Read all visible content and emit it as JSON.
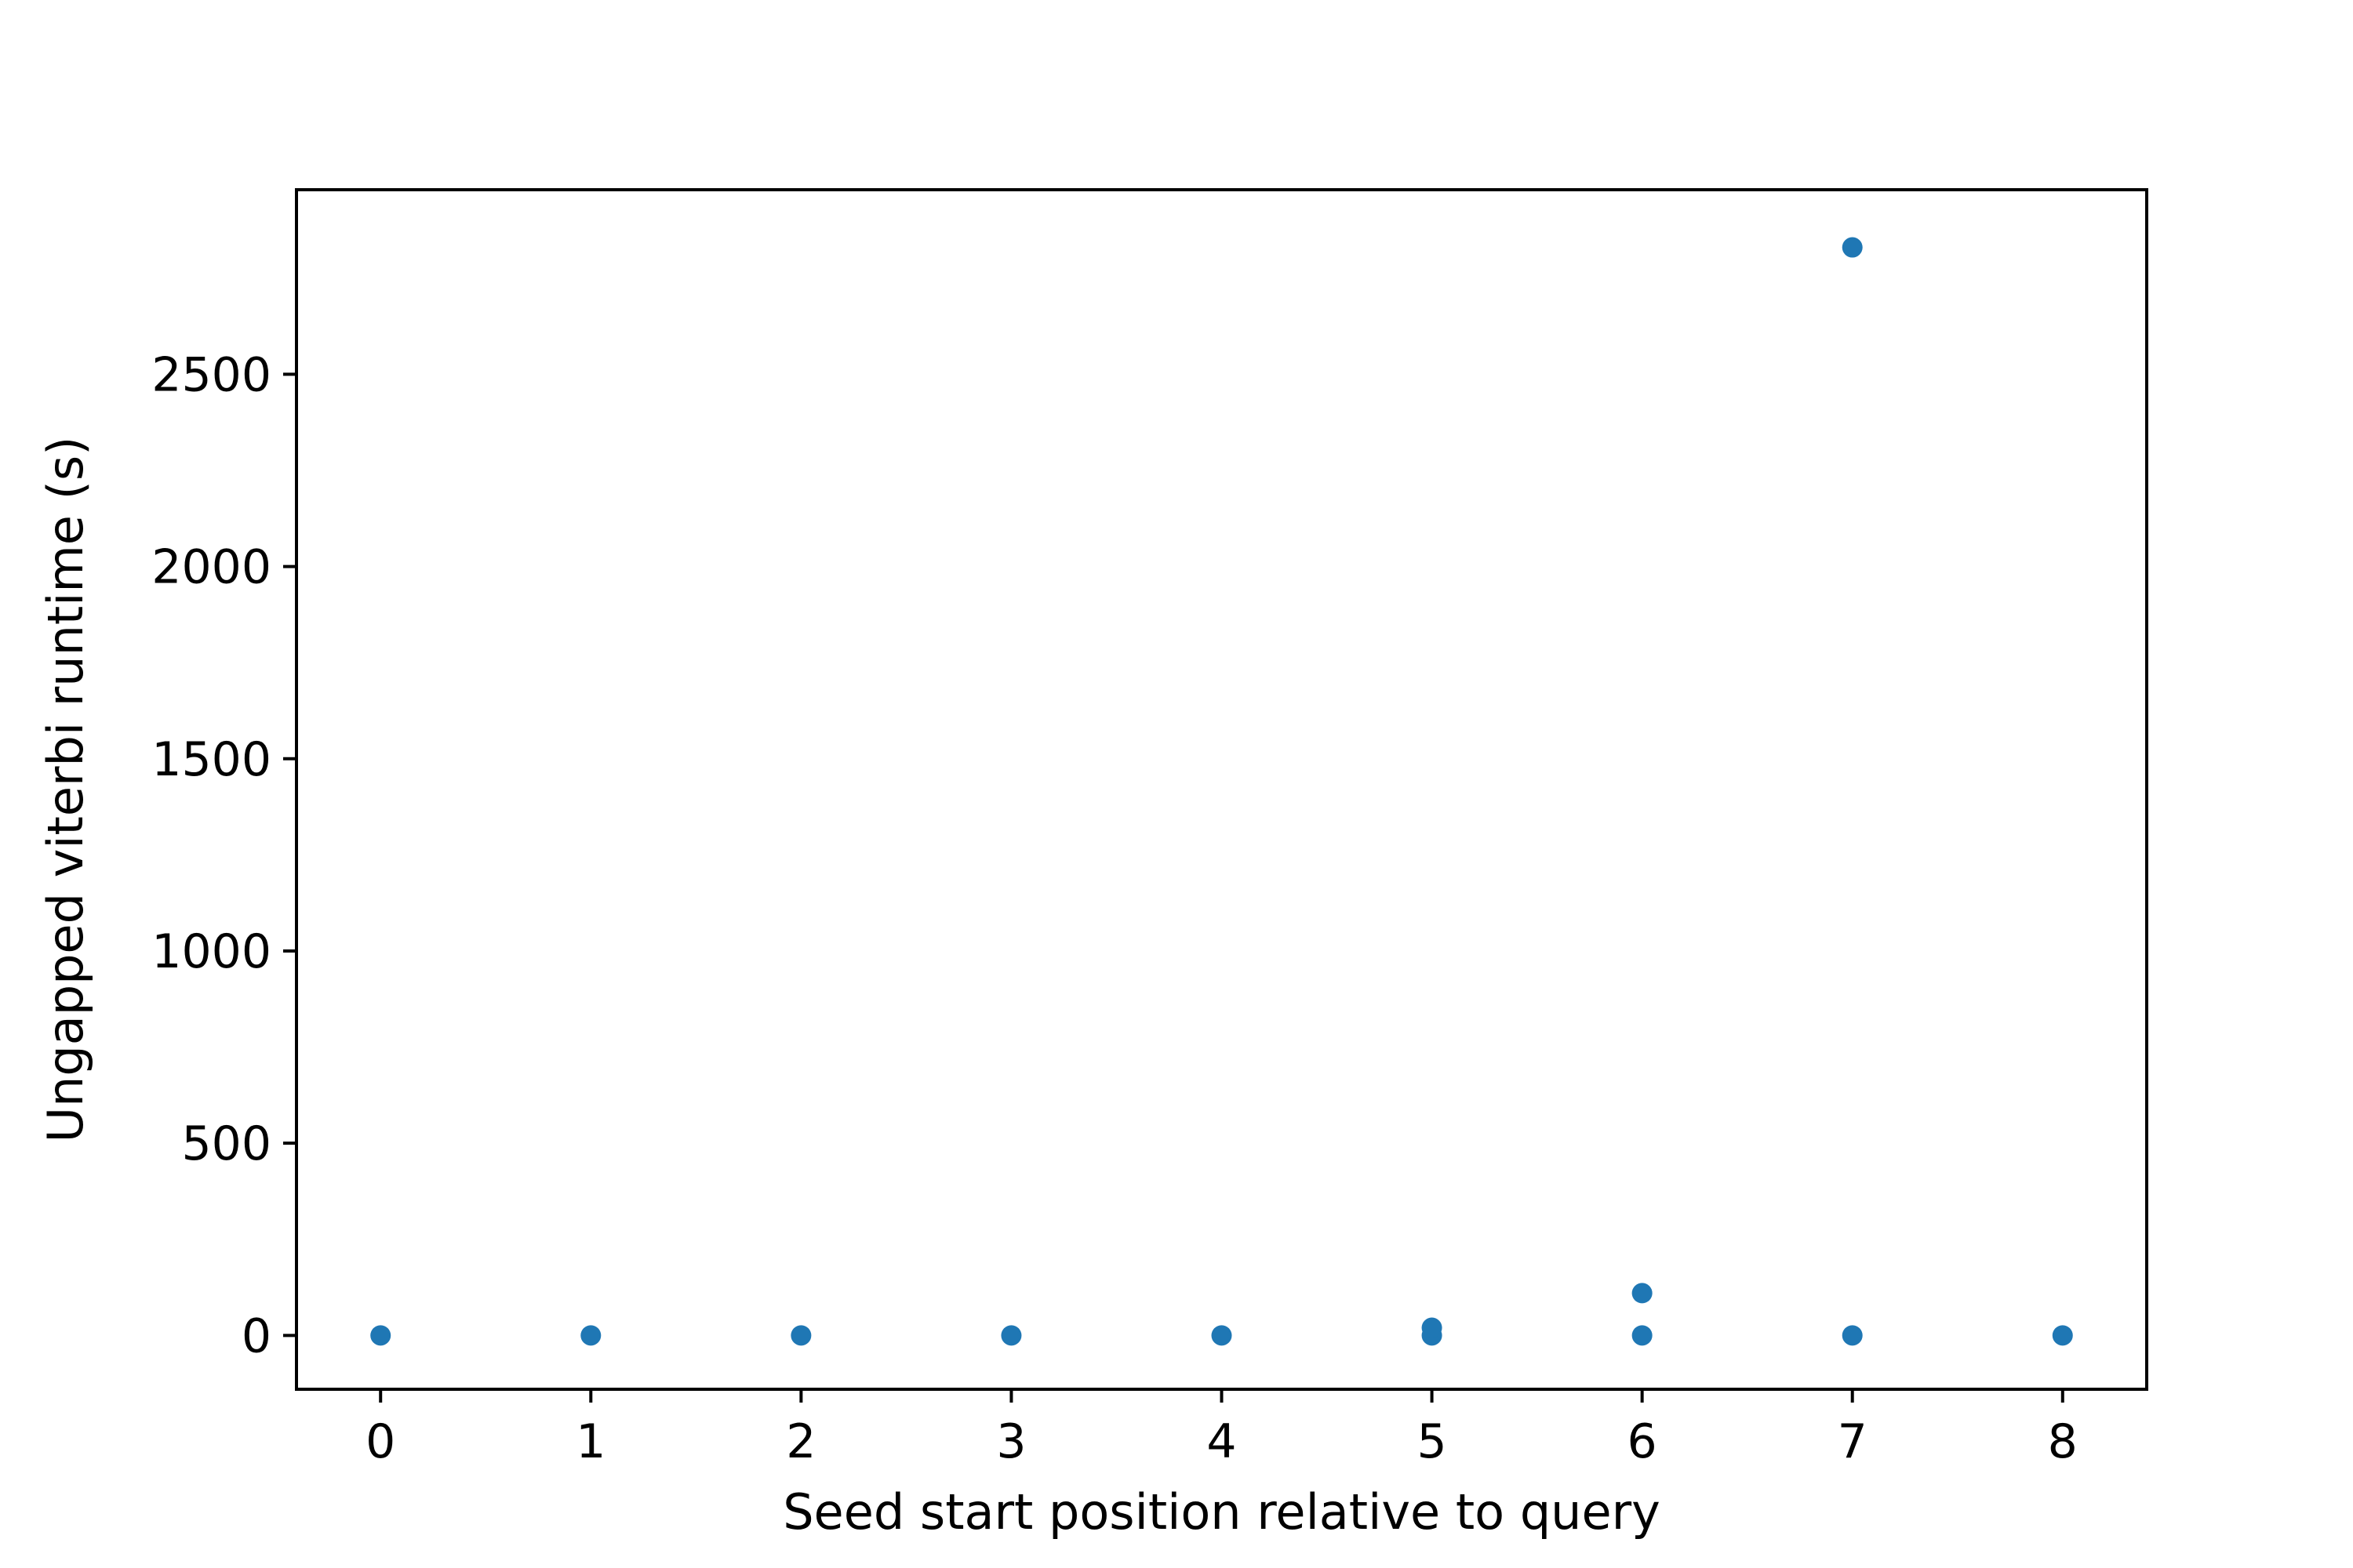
{
  "chart_data": {
    "type": "scatter",
    "xlabel": "Seed start position relative to query",
    "ylabel": "Ungapped viterbi runtime (s)",
    "xlim": [
      -0.4,
      8.4
    ],
    "ylim": [
      -140,
      2980
    ],
    "x_ticks": [
      0,
      1,
      2,
      3,
      4,
      5,
      6,
      7,
      8
    ],
    "y_ticks": [
      0,
      500,
      1000,
      1500,
      2000,
      2500
    ],
    "grid": false,
    "color": "#1f77b4",
    "points": [
      {
        "x": 0,
        "y": 0
      },
      {
        "x": 1,
        "y": 0
      },
      {
        "x": 2,
        "y": 0
      },
      {
        "x": 3,
        "y": 0
      },
      {
        "x": 4,
        "y": 0
      },
      {
        "x": 5,
        "y": 0
      },
      {
        "x": 5,
        "y": 20
      },
      {
        "x": 6,
        "y": 0
      },
      {
        "x": 6,
        "y": 110
      },
      {
        "x": 7,
        "y": 0
      },
      {
        "x": 7,
        "y": 2830
      },
      {
        "x": 8,
        "y": 0
      }
    ]
  }
}
